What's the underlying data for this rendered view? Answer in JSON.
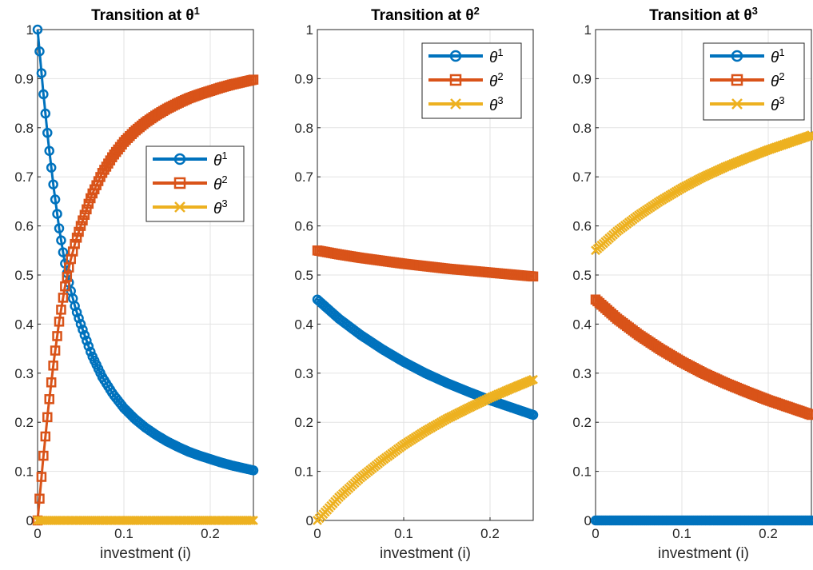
{
  "chart_data": [
    {
      "type": "line",
      "title": "Transition at θ",
      "title_sup": "1",
      "xlabel": "investment (i)",
      "ylabel": "",
      "xlim": [
        0,
        0.25
      ],
      "ylim": [
        0,
        1
      ],
      "xticks": [
        "0",
        "0.1",
        "0.2"
      ],
      "yticks": [
        "0",
        "0.1",
        "0.2",
        "0.3",
        "0.4",
        "0.5",
        "0.6",
        "0.7",
        "0.8",
        "0.9",
        "1"
      ],
      "grid": true,
      "legend_position": "middle-right",
      "x": [
        0,
        0.00625,
        0.0125,
        0.01875,
        0.025,
        0.03125,
        0.0375,
        0.04375,
        0.05,
        0.0625,
        0.075,
        0.0875,
        0.1,
        0.1125,
        0.125,
        0.1375,
        0.15,
        0.1625,
        0.175,
        0.1875,
        0.2,
        0.2125,
        0.225,
        0.2375,
        0.25
      ],
      "series": [
        {
          "name": "θ",
          "sup": "1",
          "marker": "circle",
          "color": "#0072BD",
          "values": [
            1.0,
            0.878,
            0.77,
            0.676,
            0.595,
            0.528,
            0.475,
            0.433,
            0.4,
            0.338,
            0.292,
            0.257,
            0.229,
            0.207,
            0.189,
            0.174,
            0.161,
            0.15,
            0.14,
            0.132,
            0.125,
            0.118,
            0.112,
            0.107,
            0.102
          ]
        },
        {
          "name": "θ",
          "sup": "2",
          "marker": "square",
          "color": "#D95319",
          "values": [
            0.0,
            0.122,
            0.23,
            0.324,
            0.405,
            0.472,
            0.525,
            0.567,
            0.6,
            0.662,
            0.708,
            0.743,
            0.771,
            0.793,
            0.811,
            0.826,
            0.839,
            0.85,
            0.86,
            0.868,
            0.875,
            0.882,
            0.888,
            0.893,
            0.898
          ]
        },
        {
          "name": "θ",
          "sup": "3",
          "marker": "x",
          "color": "#EDB120",
          "values": [
            0,
            0,
            0,
            0,
            0,
            0,
            0,
            0,
            0,
            0,
            0,
            0,
            0,
            0,
            0,
            0,
            0,
            0,
            0,
            0,
            0,
            0,
            0,
            0,
            0
          ]
        }
      ]
    },
    {
      "type": "line",
      "title": "Transition at θ",
      "title_sup": "2",
      "xlabel": "investment (i)",
      "ylabel": "",
      "xlim": [
        0,
        0.25
      ],
      "ylim": [
        0,
        1
      ],
      "xticks": [
        "0",
        "0.1",
        "0.2"
      ],
      "yticks": [
        "0",
        "0.1",
        "0.2",
        "0.3",
        "0.4",
        "0.5",
        "0.6",
        "0.7",
        "0.8",
        "0.9",
        "1"
      ],
      "grid": true,
      "legend_position": "top-right",
      "x": [
        0,
        0.025,
        0.05,
        0.075,
        0.1,
        0.125,
        0.15,
        0.175,
        0.2,
        0.225,
        0.25
      ],
      "series": [
        {
          "name": "θ",
          "sup": "1",
          "marker": "circle",
          "color": "#0072BD",
          "values": [
            0.45,
            0.411,
            0.378,
            0.349,
            0.323,
            0.3,
            0.28,
            0.262,
            0.245,
            0.23,
            0.215
          ]
        },
        {
          "name": "θ",
          "sup": "2",
          "marker": "square",
          "color": "#D95319",
          "values": [
            0.55,
            0.542,
            0.535,
            0.529,
            0.523,
            0.518,
            0.513,
            0.509,
            0.505,
            0.501,
            0.497
          ]
        },
        {
          "name": "θ",
          "sup": "3",
          "marker": "x",
          "color": "#EDB120",
          "values": [
            0.0,
            0.047,
            0.087,
            0.122,
            0.154,
            0.182,
            0.207,
            0.229,
            0.25,
            0.269,
            0.287
          ]
        }
      ]
    },
    {
      "type": "line",
      "title": "Transition at θ",
      "title_sup": "3",
      "xlabel": "investment (i)",
      "ylabel": "",
      "xlim": [
        0,
        0.25
      ],
      "ylim": [
        0,
        1
      ],
      "xticks": [
        "0",
        "0.1",
        "0.2"
      ],
      "yticks": [
        "0",
        "0.1",
        "0.2",
        "0.3",
        "0.4",
        "0.5",
        "0.6",
        "0.7",
        "0.8",
        "0.9",
        "1"
      ],
      "grid": true,
      "legend_position": "top-right",
      "x": [
        0,
        0.025,
        0.05,
        0.075,
        0.1,
        0.125,
        0.15,
        0.175,
        0.2,
        0.225,
        0.25
      ],
      "series": [
        {
          "name": "θ",
          "sup": "1",
          "marker": "circle",
          "color": "#0072BD",
          "values": [
            0,
            0,
            0,
            0,
            0,
            0,
            0,
            0,
            0,
            0,
            0
          ]
        },
        {
          "name": "θ",
          "sup": "2",
          "marker": "square",
          "color": "#D95319",
          "values": [
            0.45,
            0.411,
            0.378,
            0.349,
            0.323,
            0.3,
            0.28,
            0.262,
            0.245,
            0.23,
            0.215
          ]
        },
        {
          "name": "θ",
          "sup": "3",
          "marker": "x",
          "color": "#EDB120",
          "values": [
            0.55,
            0.589,
            0.622,
            0.651,
            0.677,
            0.7,
            0.72,
            0.738,
            0.755,
            0.77,
            0.785
          ]
        }
      ]
    }
  ]
}
